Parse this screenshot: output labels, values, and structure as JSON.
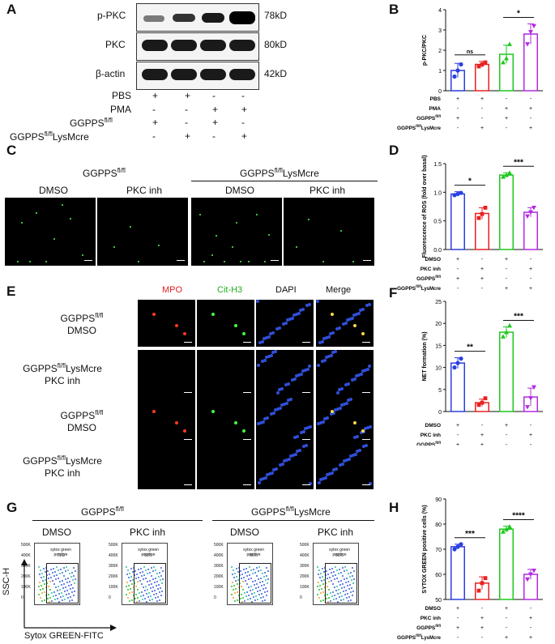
{
  "panels": {
    "A": "A",
    "B": "B",
    "C": "C",
    "D": "D",
    "E": "E",
    "F": "F",
    "G": "G",
    "H": "H"
  },
  "blot": {
    "rows": [
      {
        "name": "p-PKC",
        "size": "78kD"
      },
      {
        "name": "PKC",
        "size": "80kD"
      },
      {
        "name": "β-actin",
        "size": "42kD"
      }
    ],
    "conditions": [
      {
        "label": "PBS",
        "values": [
          "+",
          "+",
          "-",
          "-"
        ]
      },
      {
        "label": "PMA",
        "values": [
          "-",
          "-",
          "+",
          "+"
        ]
      },
      {
        "label": "GGPPS",
        "sup": "fl/fl",
        "values": [
          "+",
          "-",
          "+",
          "-"
        ]
      },
      {
        "label": "GGPPS",
        "sup": "fl/fl",
        "suffix": "LysMcre",
        "values": [
          "-",
          "+",
          "-",
          "+"
        ]
      }
    ]
  },
  "panelC": {
    "group1": {
      "label": "GGPPS",
      "sup": "fl/fl"
    },
    "group2": {
      "label": "GGPPS",
      "sup": "fl/fl",
      "suffix": "LysMcre"
    },
    "columns": [
      "DMSO",
      "PKC inh",
      "DMSO",
      "PKC inh"
    ]
  },
  "panelE": {
    "columns": [
      {
        "label": "MPO",
        "color": "#e02020"
      },
      {
        "label": "Cit-H3",
        "color": "#22aa22"
      },
      {
        "label": "DAPI",
        "color": "#111111"
      },
      {
        "label": "Merge",
        "color": "#111111"
      }
    ],
    "rows": [
      {
        "line1": "GGPPS",
        "sup": "fl/fl",
        "suffix": "",
        "line2": "DMSO"
      },
      {
        "line1": "GGPPS",
        "sup": "fl/fl",
        "suffix": "LysMcre",
        "line2": "PKC inh"
      },
      {
        "line1": "GGPPS",
        "sup": "fl/fl",
        "suffix": "",
        "line2": "DMSO"
      },
      {
        "line1": "GGPPS",
        "sup": "fl/fl",
        "suffix": "LysMcre",
        "line2": "PKC inh"
      }
    ]
  },
  "panelG": {
    "group1": {
      "label": "GGPPS",
      "sup": "fl/fl"
    },
    "group2": {
      "label": "GGPPS",
      "sup": "fl/fl",
      "suffix": "LysMcre"
    },
    "columns": [
      "DMSO",
      "PKC inh",
      "DMSO",
      "PKC inh"
    ],
    "gate_label": "sytox green positive",
    "gate_values": [
      "71.2",
      "53.5",
      "80.6",
      "60.6"
    ],
    "yaxis": "SSC-H",
    "xaxis": "Sytox GREEN-FITC",
    "yticks": [
      "500K",
      "400K",
      "300K",
      "200K",
      "100K",
      "0"
    ]
  },
  "colors": {
    "blue": "#2b3fe0",
    "red": "#e82020",
    "green": "#1ec81e",
    "purple": "#b22be0"
  },
  "chart_data": [
    {
      "panel": "B",
      "type": "bar",
      "ylabel": "p-PKC/PKC",
      "ylim": [
        0,
        4
      ],
      "yticks": [
        0,
        1,
        2,
        3,
        4
      ],
      "values": [
        1.0,
        1.3,
        1.8,
        2.8
      ],
      "errors": [
        0.35,
        0.15,
        0.45,
        0.5
      ],
      "points": [
        [
          0.7,
          1.0,
          1.3
        ],
        [
          1.2,
          1.3,
          1.4
        ],
        [
          1.4,
          1.6,
          2.3
        ],
        [
          2.3,
          2.9,
          3.2
        ]
      ],
      "significance": [
        {
          "from": 0,
          "to": 1,
          "label": "ns"
        },
        {
          "from": 2,
          "to": 3,
          "label": "*"
        }
      ],
      "conditions": [
        {
          "label": "PBS",
          "values": [
            "+",
            "+",
            "-",
            "-"
          ]
        },
        {
          "label": "PMA",
          "values": [
            "-",
            "-",
            "+",
            "+"
          ]
        },
        {
          "label": "GGPPS",
          "sup": "fl/fl",
          "values": [
            "+",
            "-",
            "+",
            "-"
          ]
        },
        {
          "label": "GGPPS",
          "sup": "fl/fl",
          "suffix": "LysMcre",
          "values": [
            "-",
            "+",
            "-",
            "+"
          ]
        }
      ]
    },
    {
      "panel": "D",
      "type": "bar",
      "ylabel": "Fluorescence of ROS (fold over basal)",
      "ylim": [
        0,
        1.5
      ],
      "yticks": [
        0.0,
        0.5,
        1.0,
        1.5
      ],
      "values": [
        0.97,
        0.63,
        1.3,
        0.65
      ],
      "errors": [
        0.04,
        0.1,
        0.04,
        0.08
      ],
      "points": [
        [
          0.95,
          0.97,
          0.99
        ],
        [
          0.55,
          0.62,
          0.73
        ],
        [
          1.27,
          1.3,
          1.34
        ],
        [
          0.58,
          0.65,
          0.73
        ]
      ],
      "significance": [
        {
          "from": 0,
          "to": 1,
          "label": "*"
        },
        {
          "from": 2,
          "to": 3,
          "label": "***"
        }
      ],
      "conditions": [
        {
          "label": "DMSO",
          "values": [
            "+",
            "-",
            "+",
            "-"
          ]
        },
        {
          "label": "PKC inh",
          "values": [
            "-",
            "+",
            "-",
            "+"
          ]
        },
        {
          "label": "GGPPS",
          "sup": "fl/fl",
          "values": [
            "+",
            "+",
            "-",
            "-"
          ]
        },
        {
          "label": "GGPPS",
          "sup": "fl/fl",
          "suffix": "LysMcre",
          "values": [
            "-",
            "-",
            "+",
            "+"
          ]
        }
      ]
    },
    {
      "panel": "F",
      "type": "bar",
      "ylabel": "NET formation (%)",
      "ylim": [
        0,
        25
      ],
      "yticks": [
        0,
        5,
        10,
        15,
        20,
        25
      ],
      "values": [
        11,
        2,
        18,
        3.3
      ],
      "errors": [
        1.2,
        0.8,
        1.2,
        2.0
      ],
      "points": [
        [
          10,
          11,
          12
        ],
        [
          1.5,
          2,
          3
        ],
        [
          17,
          18,
          19.5
        ],
        [
          1,
          3,
          5.5
        ]
      ],
      "significance": [
        {
          "from": 0,
          "to": 1,
          "label": "**"
        },
        {
          "from": 2,
          "to": 3,
          "label": "***"
        }
      ],
      "conditions": [
        {
          "label": "DMSO",
          "values": [
            "+",
            "-",
            "+",
            "-"
          ]
        },
        {
          "label": "PKC inh",
          "values": [
            "-",
            "+",
            "-",
            "+"
          ]
        },
        {
          "label": "GGPPS",
          "sup": "fl/fl",
          "values": [
            "+",
            "+",
            "-",
            "-"
          ]
        },
        {
          "label": "GGPPS",
          "sup": "fl/fl",
          "suffix": "LysMcre",
          "values": [
            "-",
            "-",
            "+",
            "+"
          ]
        }
      ]
    },
    {
      "panel": "H",
      "type": "bar",
      "ylabel": "SYTOX GREEN positive cells (%)",
      "ylim": [
        50,
        90
      ],
      "yticks": [
        50,
        60,
        70,
        80,
        90
      ],
      "values": [
        71,
        56.5,
        78,
        60
      ],
      "errors": [
        1.0,
        2.5,
        1.2,
        2.0
      ],
      "points": [
        [
          70,
          71,
          72
        ],
        [
          53.5,
          56.5,
          58.5
        ],
        [
          77,
          78,
          79
        ],
        [
          58,
          60,
          61.5
        ]
      ],
      "significance": [
        {
          "from": 0,
          "to": 1,
          "label": "***"
        },
        {
          "from": 2,
          "to": 3,
          "label": "****"
        }
      ],
      "conditions": [
        {
          "label": "DMSO",
          "values": [
            "+",
            "-",
            "+",
            "-"
          ]
        },
        {
          "label": "PKC inh",
          "values": [
            "-",
            "+",
            "-",
            "+"
          ]
        },
        {
          "label": "GGPPS",
          "sup": "fl/fl",
          "values": [
            "+",
            "+",
            "-",
            "-"
          ]
        },
        {
          "label": "GGPPS",
          "sup": "fl/fl",
          "suffix": "LysMcre",
          "values": [
            "-",
            "-",
            "+",
            "+"
          ]
        }
      ]
    }
  ]
}
